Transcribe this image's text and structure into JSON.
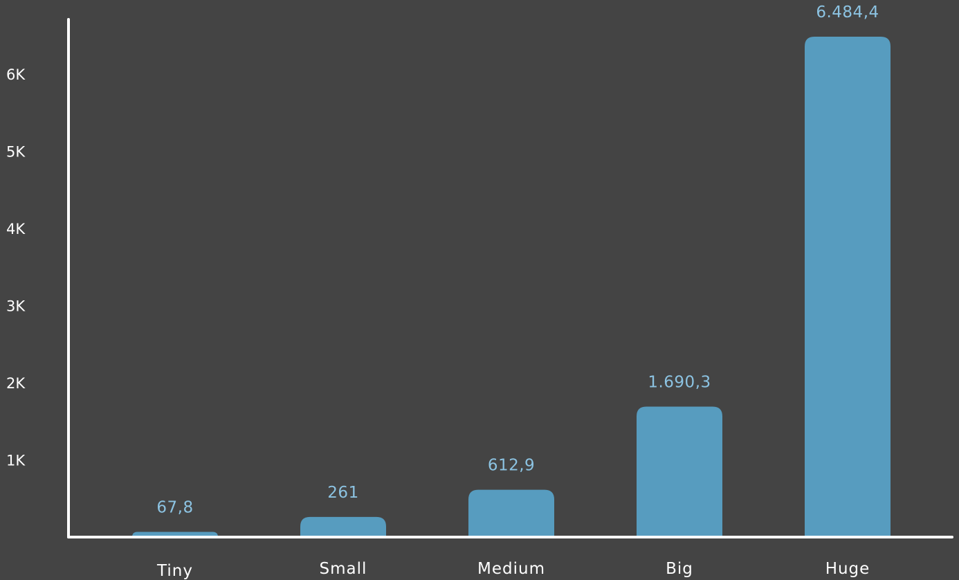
{
  "colors": {
    "background": "#444444",
    "bar": "#579cbf",
    "data_label": "#8cc3e2",
    "axis": "#ffffff",
    "text": "#ffffff"
  },
  "chart_data": {
    "type": "bar",
    "title": "",
    "xlabel": "",
    "ylabel": "",
    "categories": [
      "Tiny",
      "Small",
      "Medium",
      "Big",
      "Huge"
    ],
    "values": [
      67.8,
      261,
      612.9,
      1690.3,
      6484.4
    ],
    "data_labels": [
      "67,8",
      "261",
      "612,9",
      "1.690,3",
      "6.484,4"
    ],
    "y_ticks": [
      1000,
      2000,
      3000,
      4000,
      5000,
      6000
    ],
    "y_tick_labels": [
      "1K",
      "2K",
      "3K",
      "4K",
      "5K",
      "6K"
    ],
    "ylim": [
      0,
      6500
    ],
    "grid": false,
    "legend": "none"
  }
}
